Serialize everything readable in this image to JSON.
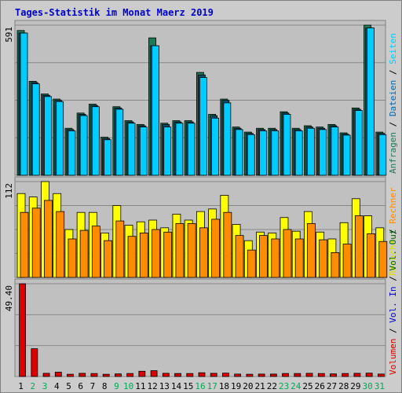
{
  "chart_data": {
    "type": "bar",
    "title": "Tages-Statistik im Monat Maerz 2019",
    "categories": [
      "1",
      "2",
      "3",
      "4",
      "5",
      "6",
      "7",
      "8",
      "9",
      "10",
      "11",
      "12",
      "13",
      "14",
      "15",
      "16",
      "17",
      "18",
      "19",
      "20",
      "21",
      "22",
      "23",
      "24",
      "25",
      "26",
      "27",
      "28",
      "29",
      "30",
      "31"
    ],
    "weekend_days": [
      "2",
      "3",
      "9",
      "10",
      "16",
      "17",
      "23",
      "24",
      "30",
      "31"
    ],
    "grid": true,
    "legend": "right-side vertical labels",
    "panels": [
      {
        "id": "top",
        "max_label": "591",
        "ylim": [
          0,
          591
        ],
        "series": [
          {
            "name": "Anfragen",
            "color": "#1e7a55",
            "values": [
              570,
              370,
              320,
              300,
              185,
              245,
              280,
              150,
              270,
              215,
              200,
              541,
              205,
              215,
              215,
              405,
              240,
              300,
              190,
              170,
              185,
              185,
              250,
              185,
              195,
              190,
              200,
              167,
              265,
              591,
              170
            ]
          },
          {
            "name": "Dateien",
            "color": "#0a4f6a",
            "values": [
              560,
              365,
              315,
              295,
              180,
              240,
              275,
              145,
              265,
              210,
              195,
              510,
              200,
              210,
              210,
              395,
              235,
              295,
              185,
              165,
              180,
              180,
              245,
              180,
              190,
              185,
              195,
              162,
              260,
              580,
              165
            ]
          },
          {
            "name": "Seiten",
            "color": "#00ccff",
            "values": [
              560,
              360,
              310,
              290,
              175,
              235,
              270,
              140,
              260,
              205,
              190,
              510,
              190,
              205,
              205,
              385,
              225,
              285,
              180,
              160,
              175,
              175,
              240,
              175,
              185,
              180,
              190,
              158,
              255,
              580,
              160
            ]
          }
        ]
      },
      {
        "id": "middle",
        "max_label": "112",
        "ylim": [
          0,
          112
        ],
        "series": [
          {
            "name": "Besuche",
            "color": "#ffff00",
            "values": [
              98,
              94,
              112,
              98,
              56,
              76,
              76,
              52,
              84,
              61,
              65,
              67,
              58,
              74,
              67,
              77,
              80,
              96,
              62,
              43,
              53,
              52,
              70,
              54,
              77,
              53,
              45,
              64,
              92,
              72,
              58
            ]
          },
          {
            "name": "Rechner",
            "color": "#ff8c00",
            "values": [
              76,
              81,
              90,
              77,
              45,
              55,
              60,
              43,
              66,
              48,
              52,
              56,
              53,
              63,
              63,
              58,
              68,
              76,
              49,
              32,
              49,
              45,
              56,
              45,
              63,
              44,
              29,
              39,
              72,
              51,
              42
            ]
          }
        ]
      },
      {
        "id": "bottom",
        "max_label": "49.40",
        "ylim": [
          0,
          49.4
        ],
        "series": [
          {
            "name": "Volumen",
            "color": "#dd0000",
            "values": [
              49.4,
              14.8,
              1.7,
              2.3,
              1.2,
              1.7,
              1.6,
              1.2,
              1.4,
              1.6,
              2.8,
              3.1,
              1.7,
              1.6,
              1.6,
              2.0,
              1.7,
              1.8,
              1.3,
              1.2,
              1.3,
              1.3,
              1.6,
              1.6,
              1.7,
              1.6,
              1.4,
              1.6,
              1.7,
              1.8,
              1.3
            ]
          }
        ]
      }
    ],
    "right_labels": {
      "top": [
        {
          "text": "Anfragen",
          "color": "#1e7a55"
        },
        {
          "text": " / ",
          "color": "#000000"
        },
        {
          "text": "Dateien",
          "color": "#0066aa"
        },
        {
          "text": " / ",
          "color": "#000000"
        },
        {
          "text": "Seiten",
          "color": "#00ccff"
        }
      ],
      "middle": [
        {
          "text": "Besuche",
          "color": "#dddd00"
        },
        {
          "text": " / ",
          "color": "#000000"
        },
        {
          "text": "Rechner",
          "color": "#ff8c00"
        }
      ],
      "bottom": [
        {
          "text": "Volumen",
          "color": "#dd0000"
        },
        {
          "text": " / ",
          "color": "#000000"
        },
        {
          "text": "Vol. In",
          "color": "#0000cc"
        },
        {
          "text": " / ",
          "color": "#000000"
        },
        {
          "text": "Vol. Out",
          "color": "#006600"
        }
      ]
    },
    "colors": {
      "background": "#cccccc",
      "plot_background": "#c0c0c0",
      "grid": "#888888",
      "title": "#0000cc",
      "weekday_tick": "#000000",
      "weekend_tick": "#00aa55"
    }
  }
}
